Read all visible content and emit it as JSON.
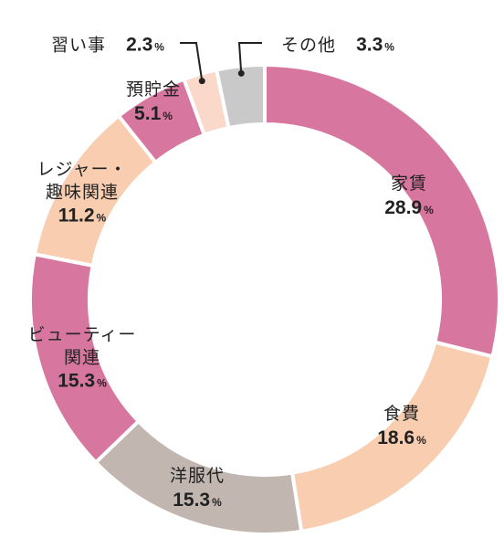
{
  "chart_data": {
    "type": "pie",
    "donut": true,
    "categories": [
      "家賃",
      "食費",
      "洋服代",
      "ビューティー関連",
      "レジャー・趣味関連",
      "預貯金",
      "習い事",
      "その他"
    ],
    "label_text": [
      "家賃",
      "食費",
      "洋服代",
      "ビューティー\n関連",
      "レジャー・\n趣味関連",
      "預貯金",
      "習い事",
      "その他"
    ],
    "values": [
      28.9,
      18.6,
      15.3,
      15.3,
      11.2,
      5.1,
      2.3,
      3.3
    ],
    "value_labels": [
      "28.9",
      "18.6",
      "15.3",
      "15.3",
      "11.2",
      "5.1",
      "2.3",
      "3.3"
    ],
    "unit": "%",
    "colors": [
      "#d7779f",
      "#f8cdb0",
      "#c2b6b1",
      "#d7779f",
      "#f8cdb0",
      "#d7779f",
      "#fad9cb",
      "#c8c9c8"
    ]
  }
}
